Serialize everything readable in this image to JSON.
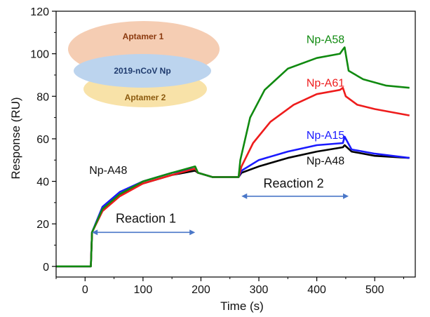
{
  "chart_data": {
    "type": "line",
    "xlabel": "Time (s)",
    "ylabel": "Response (RU)",
    "xlim": [
      -50,
      570
    ],
    "ylim": [
      -5,
      120
    ],
    "xticks": [
      0,
      100,
      200,
      300,
      400,
      500
    ],
    "yticks": [
      0,
      20,
      40,
      60,
      80,
      100,
      120
    ],
    "grid": false,
    "series": [
      {
        "name": "Np-A48",
        "color": "#000000",
        "x": [
          -50,
          10,
          12,
          30,
          60,
          100,
          150,
          190,
          195,
          220,
          240,
          265,
          270,
          300,
          350,
          400,
          445,
          448,
          460,
          500,
          560
        ],
        "y": [
          0,
          0,
          16,
          27,
          34,
          39,
          43,
          45,
          44,
          42,
          42,
          42,
          44,
          47,
          51,
          54,
          56,
          57,
          54,
          52,
          51
        ]
      },
      {
        "name": "Np-A15",
        "color": "#1a1aff",
        "x": [
          -50,
          10,
          12,
          30,
          60,
          100,
          150,
          190,
          195,
          220,
          240,
          265,
          270,
          300,
          350,
          400,
          445,
          448,
          460,
          500,
          560
        ],
        "y": [
          0,
          0,
          16,
          28,
          35,
          40,
          44,
          46,
          44,
          42,
          42,
          42,
          45,
          50,
          54,
          57,
          58,
          61,
          55,
          53,
          51
        ]
      },
      {
        "name": "Np-A61",
        "color": "#ee1c1c",
        "x": [
          -50,
          10,
          12,
          30,
          60,
          100,
          150,
          190,
          195,
          220,
          240,
          265,
          270,
          290,
          320,
          360,
          400,
          440,
          445,
          450,
          470,
          500,
          560
        ],
        "y": [
          0,
          0,
          16,
          26,
          33,
          39,
          43,
          46,
          44,
          42,
          42,
          42,
          47,
          58,
          68,
          76,
          81,
          83,
          84,
          80,
          76,
          74,
          71
        ]
      },
      {
        "name": "Np-A58",
        "color": "#108a10",
        "x": [
          -50,
          10,
          12,
          30,
          60,
          100,
          150,
          190,
          195,
          220,
          240,
          265,
          268,
          285,
          310,
          350,
          400,
          440,
          445,
          448,
          455,
          480,
          520,
          560
        ],
        "y": [
          0,
          0,
          16,
          27,
          34,
          40,
          44,
          47,
          44,
          42,
          42,
          42,
          50,
          70,
          83,
          93,
          98,
          100,
          102,
          103,
          92,
          88,
          85,
          84
        ]
      }
    ],
    "series_labels": [
      {
        "text": "Np-A58",
        "color": "#108a10",
        "x": 415,
        "y": 105
      },
      {
        "text": "Np-A61",
        "color": "#ee1c1c",
        "x": 415,
        "y": 84.5
      },
      {
        "text": "Np-A15",
        "color": "#1a1aff",
        "x": 415,
        "y": 60
      },
      {
        "text": "Np-A48",
        "color": "#111111",
        "x": 415,
        "y": 48
      },
      {
        "text": "Np-A48",
        "color": "#111111",
        "x": 40,
        "y": 43.5
      }
    ],
    "annotations": [
      {
        "text": "Reaction 1",
        "from": 12,
        "to": 190,
        "y": 16,
        "label_x": 105,
        "label_y": 20.5
      },
      {
        "text": "Reaction 2",
        "from": 270,
        "to": 455,
        "y": 33,
        "label_x": 360,
        "label_y": 37
      }
    ]
  },
  "inset": {
    "aptamer1": "Aptamer 1",
    "target": "2019-nCoV Np",
    "aptamer2": "Aptamer 2",
    "colors": {
      "aptamer1_fill": "#f5cdb3",
      "aptamer1_text": "#8b3a0f",
      "target_fill": "#bcd4ee",
      "target_text": "#1f3b6e",
      "aptamer2_fill": "#f8e2a8",
      "aptamer2_text": "#8b5a0f"
    }
  },
  "colors": {
    "arrow": "#4a77c8",
    "axis": "#000000"
  }
}
